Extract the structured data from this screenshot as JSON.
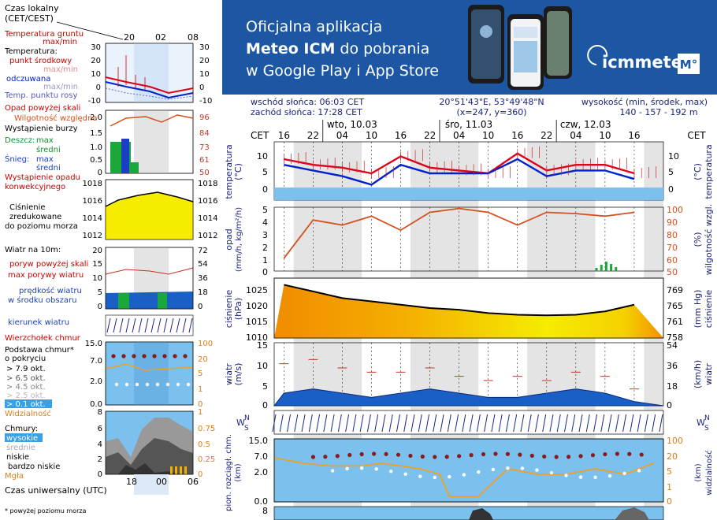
{
  "banner": {
    "line1": "Oficjalna aplikacja",
    "line2_bold": "Meteo ICM",
    "line2_rest": " do pobrania",
    "line3": "w Google Play i App Store",
    "logo_text": "icmmeteo",
    "logo_badge": "M°"
  },
  "info": {
    "sunrise": "wschód słońca: 06:03 CET",
    "sunset": "zachód słońca: 17:28 CET",
    "coords": "20°51'43\"E, 53°49'48\"N",
    "grid": "(x=247,  y=360)",
    "elev_label": "wysokość (min, środek, max)",
    "elev_values": "140 - 157 - 192 m"
  },
  "time_axis": {
    "tz": "CET",
    "tz_right": "CET",
    "hours": [
      "16",
      "22",
      "04",
      "10",
      "16",
      "22",
      "04",
      "10",
      "16",
      "22",
      "04",
      "10",
      "16"
    ],
    "days": [
      "wto, 10.03",
      "śro, 11.03",
      "czw, 12.03"
    ]
  },
  "legend": {
    "tz_title_1": "Czas lokalny",
    "tz_title_2": "(CET/CEST)",
    "tz_hours": [
      "20",
      "02",
      "08"
    ],
    "ground_temp": "Temperatura gruntu",
    "ground_temp_2": "max/min",
    "temp_title": "Temperatura:",
    "temp_mid": "punkt środkowy",
    "temp_mid_2": "max/min",
    "temp_feel": "odczuwana",
    "temp_feel_2": "max/min",
    "dewpoint": "Temp. punktu rosy",
    "temp_ticks": [
      "30",
      "20",
      "10",
      "0",
      "-10"
    ],
    "precip_above": "Opad powyżej skali",
    "humidity": "Wilgotność względna",
    "storm": "Wystąpienie burzy",
    "rain": "Deszcz:",
    "rain_max": "max",
    "rain_mean": "średni",
    "snow": "Śnieg:",
    "snow_max": "max",
    "snow_mean": "średni",
    "precip_occ": "Wystąpienie opadu",
    "precip_occ_2": "konwekcyjnego",
    "precip_ticks": [
      "2.0",
      "1.5",
      "1.0",
      "0.5",
      "0"
    ],
    "hum_ticks": [
      "96",
      "84",
      "73",
      "61",
      "50"
    ],
    "pressure_1": "Ciśnienie",
    "pressure_2": "zredukowane",
    "pressure_3": "do poziomu morza",
    "press_ticks": [
      "1018",
      "1016",
      "1014",
      "1012"
    ],
    "wind_title": "Wiatr na 10m:",
    "gust_above": "poryw powyżej skali",
    "gust_max": "max porywy wiatru",
    "wind_speed": "prędkość wiatru",
    "wind_speed_2": "w środku obszaru",
    "wind_ticks": [
      "20",
      "15",
      "10",
      "5",
      "0"
    ],
    "wind_kmh": [
      "72",
      "54",
      "36",
      "18",
      "0"
    ],
    "wind_dir": "kierunek wiatru",
    "cloud_top": "Wierzchołek chmur",
    "cloud_base": "Podstawa chmur*",
    "cloud_base_2": "o pokryciu",
    "okt_79": "> 7.9 okt.",
    "okt_65": "> 6.5 okt.",
    "okt_45": "> 4.5 okt.",
    "okt_25": "> 2.5 okt.",
    "okt_01": "> 0.1 okt.",
    "visibility": "Widzialność",
    "cb_ticks": [
      "15.0",
      "7.0",
      "2.0",
      "0.0"
    ],
    "vis_ticks": [
      "100",
      "20",
      "5",
      "1",
      "0"
    ],
    "clouds": "Chmury:",
    "cl_high": "wysokie",
    "cl_mid": "średnie",
    "cl_low": "niskie",
    "cl_vlow": "bardzo niskie",
    "fog": "Mgła",
    "cl_ticks": [
      "8",
      "6",
      "4",
      "2",
      "0"
    ],
    "cl_frac": [
      "1",
      "0.75",
      "0.5",
      "0.25",
      "0"
    ],
    "utc": "Czas uniwersalny (UTC)",
    "utc_hours": [
      "18",
      "00",
      "06"
    ],
    "footnote": "* powyżej poziomu morza"
  },
  "axes": {
    "temp_left": [
      "10",
      "5",
      "0"
    ],
    "temp_right": [
      "10",
      "5",
      "0"
    ],
    "temp_label_l": "temperatura",
    "temp_unit_l": "(°C)",
    "temp_label_r": "temperatura",
    "temp_unit_r": "(°C)",
    "precip_left": [
      "5",
      "4",
      "3",
      "2",
      "1",
      "0"
    ],
    "precip_label": "opad",
    "precip_unit": "(mm/h, kg/m²/h)",
    "hum_right": [
      "100",
      "90",
      "80",
      "70",
      "60",
      "50"
    ],
    "hum_label": "wilgotność wzgl.",
    "hum_unit": "(%)",
    "press_left": [
      "1025",
      "1020",
      "1015",
      "1010"
    ],
    "press_right": [
      "769",
      "765",
      "761",
      "758"
    ],
    "press_label": "ciśnienie",
    "press_unit_l": "(hPa)",
    "press_unit_r": "(mm Hg)",
    "wind_left": [
      "15",
      "10",
      "5",
      "0"
    ],
    "wind_right": [
      "54",
      "36",
      "18",
      "0"
    ],
    "wind_label": "wiatr",
    "wind_unit_l": "(m/s)",
    "wind_unit_r": "(km/h)",
    "dir_glyph": "W",
    "dir_glyph2": "N",
    "dir_glyph3": "S",
    "cb_left": [
      "15.0",
      "7.0",
      "2.0",
      "0.0"
    ],
    "cb_right": [
      "100",
      "20",
      "5",
      "1",
      "0"
    ],
    "cb_label": "pion. rozciągł. chm.",
    "cb_unit": "(km)",
    "vis_label": "widzialność",
    "vis_unit": "(km)",
    "cl_left_top": "8"
  },
  "colors": {
    "banner": "#1d57a4",
    "temp": "#e0001a",
    "feel": "#0022cc",
    "dew": "#6b6bd9",
    "humidity": "#d4501e",
    "pressure_fill": "#f5b800",
    "wind_fill": "#1a5fc6",
    "gust": "#c9301c",
    "cloud_bg": "#7cc1ee",
    "night": "#d9d9d9",
    "day": "#efefef"
  },
  "chart_data": [
    {
      "type": "line",
      "name": "temperatura",
      "x": [
        0,
        6,
        12,
        18,
        24,
        30,
        36,
        42,
        48,
        54,
        60,
        66,
        72
      ],
      "series": [
        {
          "name": "punkt środkowy",
          "values": [
            10,
            8,
            7,
            5,
            11,
            7,
            6,
            5,
            12,
            6,
            8,
            8,
            5
          ]
        },
        {
          "name": "odczuwana",
          "values": [
            8,
            6,
            4,
            1,
            8,
            5,
            5,
            5,
            10,
            4,
            6,
            6,
            3
          ]
        }
      ],
      "ylim": [
        -1,
        12
      ]
    },
    {
      "type": "line",
      "name": "wilgotność",
      "x": [
        0,
        6,
        12,
        18,
        24,
        30,
        36,
        42,
        48,
        54,
        60,
        66,
        72
      ],
      "series": [
        {
          "name": "wilgotność",
          "values": [
            60,
            90,
            86,
            93,
            82,
            96,
            99,
            96,
            86,
            96,
            95,
            93,
            96
          ]
        }
      ],
      "ylim": [
        50,
        100
      ]
    },
    {
      "type": "area",
      "name": "ciśnienie",
      "x": [
        0,
        6,
        12,
        18,
        24,
        30,
        36,
        42,
        48,
        54,
        60,
        66,
        72
      ],
      "series": [
        {
          "name": "ciśnienie",
          "values": [
            1026,
            1024,
            1022,
            1021,
            1020,
            1019,
            1018.5,
            1017.5,
            1017,
            1016.8,
            1017,
            1018,
            1020
          ]
        }
      ],
      "ylim": [
        1010,
        1028
      ]
    },
    {
      "type": "area",
      "name": "wiatr",
      "x": [
        0,
        6,
        12,
        18,
        24,
        30,
        36,
        42,
        48,
        54,
        60,
        66,
        72
      ],
      "series": [
        {
          "name": "prędkość",
          "values": [
            3,
            4,
            3,
            2,
            3,
            4,
            3,
            2,
            2,
            3,
            4,
            3,
            1
          ]
        },
        {
          "name": "porywy",
          "values": [
            10,
            11,
            9,
            8,
            8,
            9,
            7,
            6,
            7,
            6,
            8,
            7,
            4
          ]
        }
      ],
      "ylim": [
        0,
        15
      ]
    }
  ]
}
